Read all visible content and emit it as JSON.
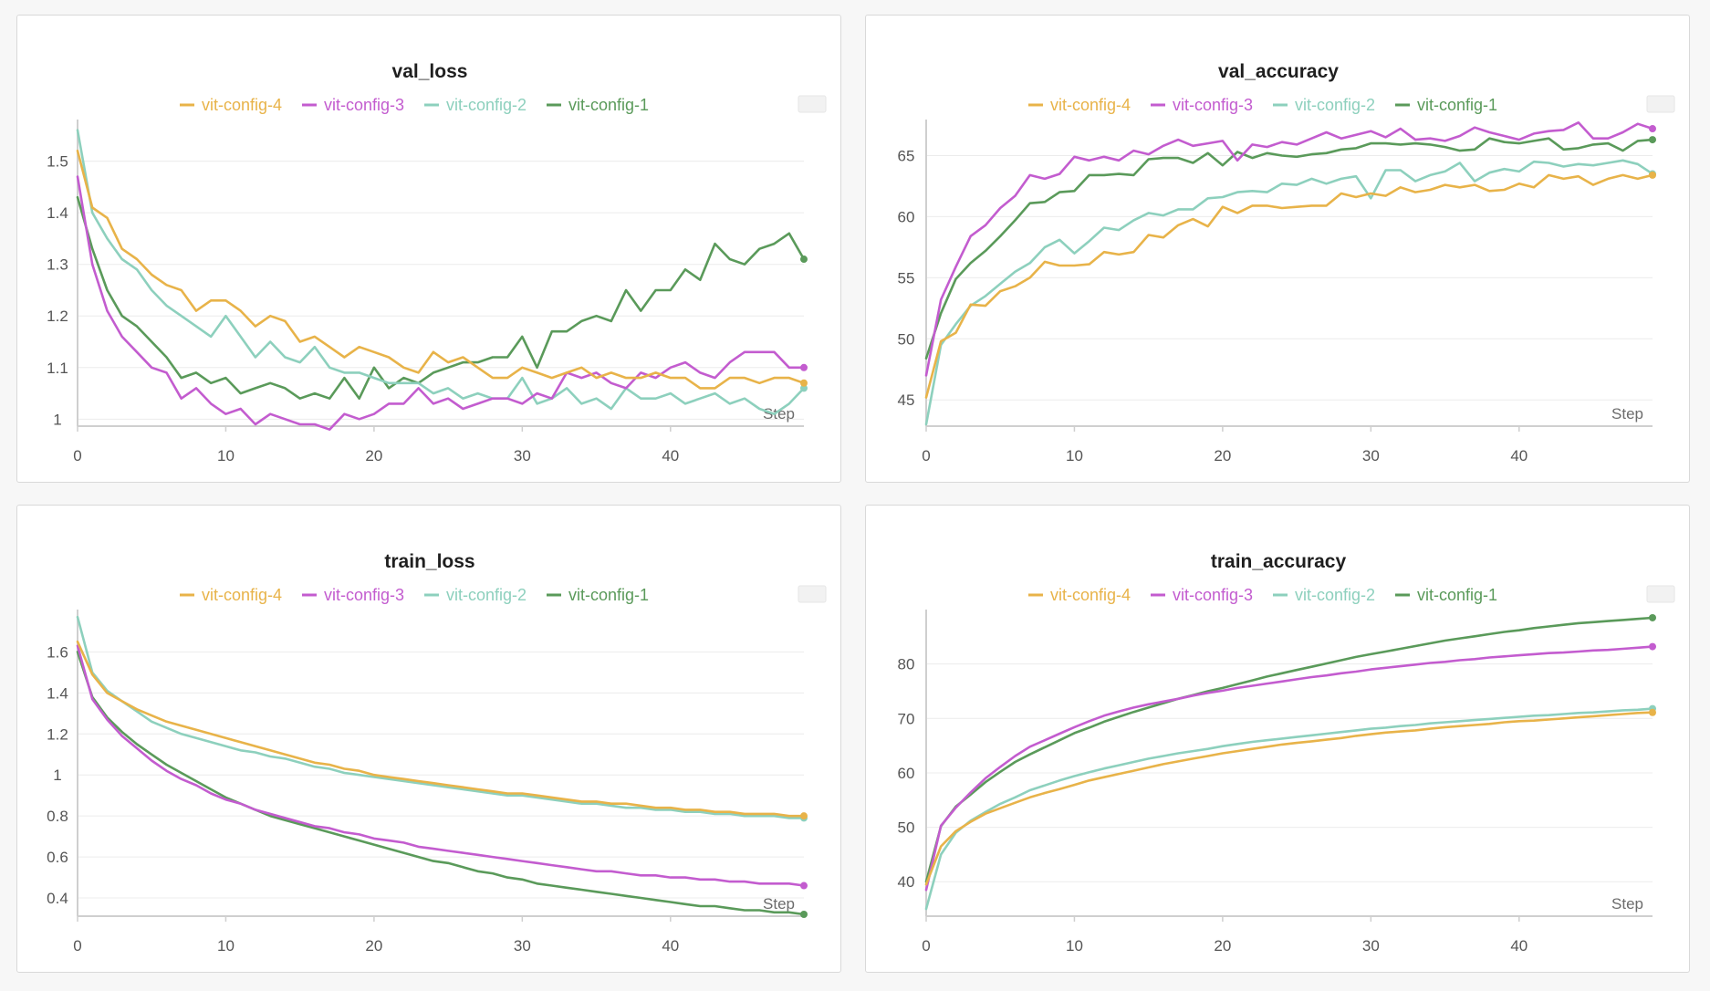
{
  "series_colors": {
    "vit-config-4": "#e8b349",
    "vit-config-3": "#c35ccf",
    "vit-config-2": "#8dd0bd",
    "vit-config-1": "#5a9a5a"
  },
  "legend": [
    "vit-config-4",
    "vit-config-3",
    "vit-config-2",
    "vit-config-1"
  ],
  "x_axis_label": "Step",
  "chart_data": [
    {
      "type": "line",
      "title": "val_loss",
      "xlabel": "Step",
      "ylabel": "",
      "xlim": [
        0,
        49
      ],
      "ylim": [
        0.99,
        1.57
      ],
      "xticks": [
        0,
        10,
        20,
        30,
        40
      ],
      "yticks": [
        1,
        1.1,
        1.2,
        1.3,
        1.4,
        1.5
      ],
      "ytick_labels": [
        "1",
        "1.1",
        "1.2",
        "1.3",
        "1.4",
        "1.5"
      ],
      "grid": true,
      "legend_position": "top",
      "series": [
        {
          "name": "vit-config-4",
          "values": [
            1.52,
            1.41,
            1.39,
            1.33,
            1.31,
            1.28,
            1.26,
            1.25,
            1.21,
            1.23,
            1.23,
            1.21,
            1.18,
            1.2,
            1.19,
            1.15,
            1.16,
            1.14,
            1.12,
            1.14,
            1.13,
            1.12,
            1.1,
            1.09,
            1.13,
            1.11,
            1.12,
            1.1,
            1.08,
            1.08,
            1.1,
            1.09,
            1.08,
            1.09,
            1.1,
            1.08,
            1.09,
            1.08,
            1.08,
            1.09,
            1.08,
            1.08,
            1.06,
            1.06,
            1.08,
            1.08,
            1.07,
            1.08,
            1.08,
            1.07
          ]
        },
        {
          "name": "vit-config-3",
          "values": [
            1.47,
            1.3,
            1.21,
            1.16,
            1.13,
            1.1,
            1.09,
            1.04,
            1.06,
            1.03,
            1.01,
            1.02,
            0.99,
            1.01,
            1.0,
            0.99,
            0.99,
            0.98,
            1.01,
            1.0,
            1.01,
            1.03,
            1.03,
            1.06,
            1.03,
            1.04,
            1.02,
            1.03,
            1.04,
            1.04,
            1.03,
            1.05,
            1.04,
            1.09,
            1.08,
            1.09,
            1.07,
            1.06,
            1.09,
            1.08,
            1.1,
            1.11,
            1.09,
            1.08,
            1.11,
            1.13,
            1.13,
            1.13,
            1.1,
            1.1
          ]
        },
        {
          "name": "vit-config-2",
          "values": [
            1.56,
            1.4,
            1.35,
            1.31,
            1.29,
            1.25,
            1.22,
            1.2,
            1.18,
            1.16,
            1.2,
            1.16,
            1.12,
            1.15,
            1.12,
            1.11,
            1.14,
            1.1,
            1.09,
            1.09,
            1.08,
            1.07,
            1.07,
            1.07,
            1.05,
            1.06,
            1.04,
            1.05,
            1.04,
            1.04,
            1.08,
            1.03,
            1.04,
            1.06,
            1.03,
            1.04,
            1.02,
            1.06,
            1.04,
            1.04,
            1.05,
            1.03,
            1.04,
            1.05,
            1.03,
            1.04,
            1.02,
            1.01,
            1.03,
            1.06
          ]
        },
        {
          "name": "vit-config-1",
          "values": [
            1.43,
            1.33,
            1.25,
            1.2,
            1.18,
            1.15,
            1.12,
            1.08,
            1.09,
            1.07,
            1.08,
            1.05,
            1.06,
            1.07,
            1.06,
            1.04,
            1.05,
            1.04,
            1.08,
            1.04,
            1.1,
            1.06,
            1.08,
            1.07,
            1.09,
            1.1,
            1.11,
            1.11,
            1.12,
            1.12,
            1.16,
            1.1,
            1.17,
            1.17,
            1.19,
            1.2,
            1.19,
            1.25,
            1.21,
            1.25,
            1.25,
            1.29,
            1.27,
            1.34,
            1.31,
            1.3,
            1.33,
            1.34,
            1.36,
            1.31
          ]
        }
      ]
    },
    {
      "type": "line",
      "title": "val_accuracy",
      "xlabel": "Step",
      "ylabel": "",
      "xlim": [
        0,
        49
      ],
      "ylim": [
        43,
        67.5
      ],
      "xticks": [
        0,
        10,
        20,
        30,
        40
      ],
      "yticks": [
        45,
        50,
        55,
        60,
        65
      ],
      "ytick_labels": [
        "45",
        "50",
        "55",
        "60",
        "65"
      ],
      "grid": true,
      "legend_position": "top",
      "series": [
        {
          "name": "vit-config-4",
          "values": [
            45.2,
            49.8,
            50.5,
            52.8,
            52.7,
            53.9,
            54.3,
            55.0,
            56.3,
            56.0,
            56.0,
            56.1,
            57.1,
            56.9,
            57.1,
            58.5,
            58.3,
            59.3,
            59.8,
            59.2,
            60.8,
            60.3,
            60.9,
            60.9,
            60.7,
            60.8,
            60.9,
            60.9,
            61.9,
            61.6,
            61.9,
            61.7,
            62.4,
            62.0,
            62.2,
            62.6,
            62.4,
            62.6,
            62.1,
            62.2,
            62.7,
            62.4,
            63.4,
            63.1,
            63.3,
            62.6,
            63.1,
            63.4,
            63.1,
            63.4
          ]
        },
        {
          "name": "vit-config-3",
          "values": [
            47.0,
            53.2,
            55.9,
            58.4,
            59.3,
            60.7,
            61.7,
            63.4,
            63.1,
            63.5,
            64.9,
            64.6,
            64.9,
            64.6,
            65.4,
            65.1,
            65.8,
            66.3,
            65.8,
            66.0,
            66.2,
            64.6,
            65.9,
            65.7,
            66.1,
            65.9,
            66.4,
            66.9,
            66.4,
            66.7,
            67.0,
            66.5,
            67.2,
            66.3,
            66.4,
            66.2,
            66.6,
            67.3,
            66.9,
            66.6,
            66.3,
            66.8,
            67.0,
            67.1,
            67.7,
            66.4,
            66.4,
            66.9,
            67.6,
            67.2
          ]
        },
        {
          "name": "vit-config-2",
          "values": [
            43.0,
            49.5,
            51.2,
            52.7,
            53.5,
            54.5,
            55.5,
            56.2,
            57.5,
            58.1,
            57.0,
            58.0,
            59.1,
            58.9,
            59.7,
            60.3,
            60.1,
            60.6,
            60.6,
            61.5,
            61.6,
            62.0,
            62.1,
            62.0,
            62.7,
            62.6,
            63.1,
            62.7,
            63.1,
            63.3,
            61.5,
            63.8,
            63.8,
            62.9,
            63.4,
            63.7,
            64.4,
            62.9,
            63.6,
            63.9,
            63.7,
            64.5,
            64.4,
            64.1,
            64.3,
            64.2,
            64.4,
            64.6,
            64.3,
            63.5
          ]
        },
        {
          "name": "vit-config-1",
          "values": [
            48.4,
            52.1,
            54.9,
            56.2,
            57.2,
            58.4,
            59.7,
            61.1,
            61.2,
            62.0,
            62.1,
            63.4,
            63.4,
            63.5,
            63.4,
            64.7,
            64.8,
            64.8,
            64.4,
            65.2,
            64.2,
            65.3,
            64.8,
            65.2,
            65.0,
            64.9,
            65.1,
            65.2,
            65.5,
            65.6,
            66.0,
            66.0,
            65.9,
            66.0,
            65.9,
            65.7,
            65.4,
            65.5,
            66.4,
            66.1,
            66.0,
            66.2,
            66.4,
            65.5,
            65.6,
            65.9,
            66.0,
            65.4,
            66.2,
            66.3
          ]
        }
      ]
    },
    {
      "type": "line",
      "title": "train_loss",
      "xlabel": "Step",
      "ylabel": "",
      "xlim": [
        0,
        49
      ],
      "ylim": [
        0.32,
        1.78
      ],
      "xticks": [
        0,
        10,
        20,
        30,
        40
      ],
      "yticks": [
        0.4,
        0.6,
        0.8,
        1.0,
        1.2,
        1.4,
        1.6
      ],
      "ytick_labels": [
        "0.4",
        "0.6",
        "0.8",
        "1",
        "1.2",
        "1.4",
        "1.6"
      ],
      "grid": true,
      "legend_position": "top",
      "series": [
        {
          "name": "vit-config-4",
          "values": [
            1.65,
            1.49,
            1.4,
            1.36,
            1.32,
            1.29,
            1.26,
            1.24,
            1.22,
            1.2,
            1.18,
            1.16,
            1.14,
            1.12,
            1.1,
            1.08,
            1.06,
            1.05,
            1.03,
            1.02,
            1.0,
            0.99,
            0.98,
            0.97,
            0.96,
            0.95,
            0.94,
            0.93,
            0.92,
            0.91,
            0.91,
            0.9,
            0.89,
            0.88,
            0.87,
            0.87,
            0.86,
            0.86,
            0.85,
            0.84,
            0.84,
            0.83,
            0.83,
            0.82,
            0.82,
            0.81,
            0.81,
            0.81,
            0.8,
            0.8
          ]
        },
        {
          "name": "vit-config-3",
          "values": [
            1.63,
            1.37,
            1.27,
            1.19,
            1.13,
            1.07,
            1.02,
            0.98,
            0.95,
            0.91,
            0.88,
            0.86,
            0.83,
            0.81,
            0.79,
            0.77,
            0.75,
            0.74,
            0.72,
            0.71,
            0.69,
            0.68,
            0.67,
            0.65,
            0.64,
            0.63,
            0.62,
            0.61,
            0.6,
            0.59,
            0.58,
            0.57,
            0.56,
            0.55,
            0.54,
            0.53,
            0.53,
            0.52,
            0.51,
            0.51,
            0.5,
            0.5,
            0.49,
            0.49,
            0.48,
            0.48,
            0.47,
            0.47,
            0.47,
            0.46
          ]
        },
        {
          "name": "vit-config-2",
          "values": [
            1.77,
            1.5,
            1.41,
            1.36,
            1.31,
            1.26,
            1.23,
            1.2,
            1.18,
            1.16,
            1.14,
            1.12,
            1.11,
            1.09,
            1.08,
            1.06,
            1.04,
            1.03,
            1.01,
            1.0,
            0.99,
            0.98,
            0.97,
            0.96,
            0.95,
            0.94,
            0.93,
            0.92,
            0.91,
            0.9,
            0.9,
            0.89,
            0.88,
            0.87,
            0.86,
            0.86,
            0.85,
            0.84,
            0.84,
            0.83,
            0.83,
            0.82,
            0.82,
            0.81,
            0.81,
            0.8,
            0.8,
            0.8,
            0.79,
            0.79
          ]
        },
        {
          "name": "vit-config-1",
          "values": [
            1.6,
            1.38,
            1.28,
            1.21,
            1.15,
            1.1,
            1.05,
            1.01,
            0.97,
            0.93,
            0.89,
            0.86,
            0.83,
            0.8,
            0.78,
            0.76,
            0.74,
            0.72,
            0.7,
            0.68,
            0.66,
            0.64,
            0.62,
            0.6,
            0.58,
            0.57,
            0.55,
            0.53,
            0.52,
            0.5,
            0.49,
            0.47,
            0.46,
            0.45,
            0.44,
            0.43,
            0.42,
            0.41,
            0.4,
            0.39,
            0.38,
            0.37,
            0.36,
            0.36,
            0.35,
            0.34,
            0.34,
            0.33,
            0.33,
            0.32
          ]
        }
      ]
    },
    {
      "type": "line",
      "title": "train_accuracy",
      "xlabel": "Step",
      "ylabel": "",
      "xlim": [
        0,
        49
      ],
      "ylim": [
        34,
        89
      ],
      "xticks": [
        0,
        10,
        20,
        30,
        40
      ],
      "yticks": [
        40,
        50,
        60,
        70,
        80
      ],
      "ytick_labels": [
        "40",
        "50",
        "60",
        "70",
        "80"
      ],
      "grid": true,
      "legend_position": "top",
      "series": [
        {
          "name": "vit-config-4",
          "values": [
            39.5,
            46.5,
            49.3,
            51.0,
            52.5,
            53.5,
            54.5,
            55.5,
            56.3,
            57.0,
            57.8,
            58.6,
            59.2,
            59.8,
            60.4,
            61.0,
            61.6,
            62.1,
            62.6,
            63.1,
            63.6,
            64.0,
            64.4,
            64.8,
            65.2,
            65.5,
            65.8,
            66.1,
            66.4,
            66.8,
            67.1,
            67.4,
            67.6,
            67.8,
            68.1,
            68.4,
            68.6,
            68.8,
            69.0,
            69.3,
            69.5,
            69.6,
            69.8,
            70.0,
            70.2,
            70.4,
            70.6,
            70.8,
            71.0,
            71.1
          ]
        },
        {
          "name": "vit-config-3",
          "values": [
            38.5,
            50.3,
            53.6,
            56.4,
            59.0,
            61.1,
            63.1,
            64.8,
            66.0,
            67.2,
            68.4,
            69.5,
            70.5,
            71.3,
            72.0,
            72.6,
            73.1,
            73.6,
            74.2,
            74.7,
            75.1,
            75.6,
            76.0,
            76.4,
            76.8,
            77.2,
            77.6,
            77.9,
            78.3,
            78.6,
            79.0,
            79.3,
            79.6,
            79.9,
            80.2,
            80.4,
            80.7,
            80.9,
            81.2,
            81.4,
            81.6,
            81.8,
            82.0,
            82.1,
            82.3,
            82.5,
            82.6,
            82.8,
            83.0,
            83.2
          ]
        },
        {
          "name": "vit-config-2",
          "values": [
            35.0,
            45.0,
            49.0,
            51.2,
            52.8,
            54.3,
            55.5,
            56.8,
            57.7,
            58.6,
            59.4,
            60.1,
            60.8,
            61.4,
            62.0,
            62.6,
            63.1,
            63.6,
            64.0,
            64.4,
            64.9,
            65.3,
            65.7,
            66.0,
            66.3,
            66.6,
            66.9,
            67.2,
            67.5,
            67.8,
            68.1,
            68.3,
            68.6,
            68.8,
            69.1,
            69.3,
            69.5,
            69.7,
            69.9,
            70.1,
            70.3,
            70.5,
            70.6,
            70.8,
            71.0,
            71.1,
            71.3,
            71.5,
            71.6,
            71.8
          ]
        },
        {
          "name": "vit-config-1",
          "values": [
            40.0,
            50.2,
            53.8,
            56.0,
            58.3,
            60.2,
            62.0,
            63.4,
            64.7,
            66.0,
            67.3,
            68.3,
            69.4,
            70.3,
            71.2,
            72.0,
            72.8,
            73.6,
            74.3,
            75.0,
            75.6,
            76.3,
            77.0,
            77.7,
            78.3,
            78.9,
            79.5,
            80.1,
            80.7,
            81.3,
            81.8,
            82.3,
            82.8,
            83.3,
            83.8,
            84.3,
            84.7,
            85.1,
            85.5,
            85.9,
            86.2,
            86.6,
            86.9,
            87.2,
            87.5,
            87.7,
            87.9,
            88.1,
            88.3,
            88.5
          ]
        }
      ]
    }
  ]
}
